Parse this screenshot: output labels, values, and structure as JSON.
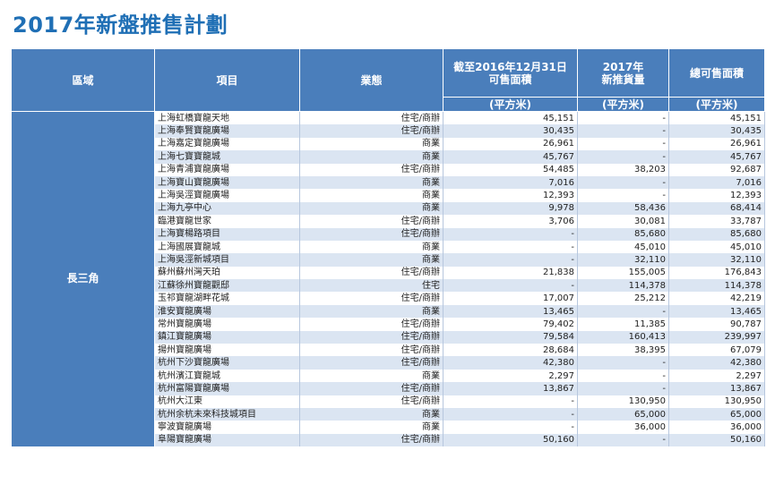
{
  "title": "2017年新盤推售計劃",
  "headers": {
    "region": "區域",
    "project": "項目",
    "type": "業態",
    "avail_line1": "截至2016年12月31日",
    "avail_line2": "可售面積",
    "new_line1": "2017年",
    "new_line2": "新推貨量",
    "total": "總可售面積",
    "unit": "(平方米)"
  },
  "region_name": "長三角",
  "rows": [
    {
      "project": "上海虹橋寶龍天地",
      "type": "住宅/商辦",
      "available": "45,151",
      "new_supply": "-",
      "total": "45,151"
    },
    {
      "project": "上海奉賢寶龍廣場",
      "type": "住宅/商辦",
      "available": "30,435",
      "new_supply": "-",
      "total": "30,435"
    },
    {
      "project": "上海嘉定寶龍廣場",
      "type": "商業",
      "available": "26,961",
      "new_supply": "-",
      "total": "26,961"
    },
    {
      "project": "上海七寶寶龍城",
      "type": "商業",
      "available": "45,767",
      "new_supply": "-",
      "total": "45,767"
    },
    {
      "project": "上海青浦寶龍廣場",
      "type": "住宅/商辦",
      "available": "54,485",
      "new_supply": "38,203",
      "total": "92,687"
    },
    {
      "project": "上海寶山寶龍廣場",
      "type": "商業",
      "available": "7,016",
      "new_supply": "-",
      "total": "7,016"
    },
    {
      "project": "上海吳涇寶龍廣場",
      "type": "商業",
      "available": "12,393",
      "new_supply": "-",
      "total": "12,393"
    },
    {
      "project": "上海九亭中心",
      "type": "商業",
      "available": "9,978",
      "new_supply": "58,436",
      "total": "68,414"
    },
    {
      "project": "臨港寶龍世家",
      "type": "住宅/商辦",
      "available": "3,706",
      "new_supply": "30,081",
      "total": "33,787"
    },
    {
      "project": "上海寶楊路項目",
      "type": "住宅/商辦",
      "available": "-",
      "new_supply": "85,680",
      "total": "85,680"
    },
    {
      "project": "上海國展寶龍城",
      "type": "商業",
      "available": "-",
      "new_supply": "45,010",
      "total": "45,010"
    },
    {
      "project": "上海吳涇新城項目",
      "type": "商業",
      "available": "-",
      "new_supply": "32,110",
      "total": "32,110"
    },
    {
      "project": "蘇州蘇州灣天珀",
      "type": "住宅/商辦",
      "available": "21,838",
      "new_supply": "155,005",
      "total": "176,843"
    },
    {
      "project": "江蘇徐州寶龍觀邸",
      "type": "住宅",
      "available": "-",
      "new_supply": "114,378",
      "total": "114,378"
    },
    {
      "project": "玉祁寶龍湖畔花城",
      "type": "住宅/商辦",
      "available": "17,007",
      "new_supply": "25,212",
      "total": "42,219"
    },
    {
      "project": "淮安寶龍廣場",
      "type": "商業",
      "available": "13,465",
      "new_supply": "-",
      "total": "13,465"
    },
    {
      "project": "常州寶龍廣場",
      "type": "住宅/商辦",
      "available": "79,402",
      "new_supply": "11,385",
      "total": "90,787"
    },
    {
      "project": "鎮江寶龍廣場",
      "type": "住宅/商辦",
      "available": "79,584",
      "new_supply": "160,413",
      "total": "239,997"
    },
    {
      "project": "揚州寶龍廣場",
      "type": "住宅/商辦",
      "available": "28,684",
      "new_supply": "38,395",
      "total": "67,079"
    },
    {
      "project": "杭州下沙寶龍廣場",
      "type": "住宅/商辦",
      "available": "42,380",
      "new_supply": "-",
      "total": "42,380"
    },
    {
      "project": "杭州濱江寶龍城",
      "type": "商業",
      "available": "2,297",
      "new_supply": "-",
      "total": "2,297"
    },
    {
      "project": "杭州富陽寶龍廣場",
      "type": "住宅/商辦",
      "available": "13,867",
      "new_supply": "-",
      "total": "13,867"
    },
    {
      "project": "杭州大江東",
      "type": "住宅/商辦",
      "available": "-",
      "new_supply": "130,950",
      "total": "130,950"
    },
    {
      "project": "杭州余杭未來科技城項目",
      "type": "商業",
      "available": "-",
      "new_supply": "65,000",
      "total": "65,000"
    },
    {
      "project": "寧波寶龍廣場",
      "type": "商業",
      "available": "-",
      "new_supply": "36,000",
      "total": "36,000"
    },
    {
      "project": "阜陽寶龍廣場",
      "type": "住宅/商辦",
      "available": "50,160",
      "new_supply": "-",
      "total": "50,160"
    }
  ]
}
